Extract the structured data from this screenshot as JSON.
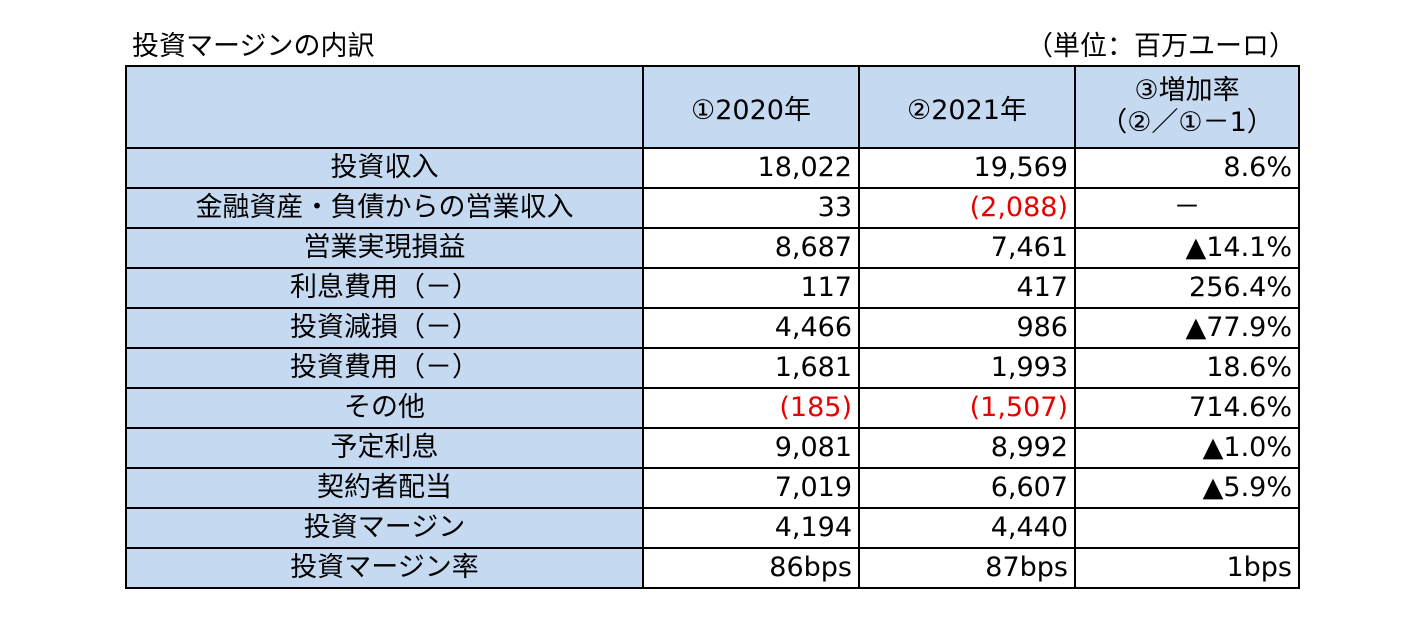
{
  "title": "投資マージンの内訳",
  "unit": "（単位：百万ユーロ）",
  "headers": {
    "col1": "①2020年",
    "col2": "②2021年",
    "col3_line1": "③増加率",
    "col3_line2": "（②／①－1）"
  },
  "rows": [
    {
      "label": "投資収入",
      "v2020": "18,022",
      "v2021": "19,569",
      "rate": "8.6%"
    },
    {
      "label": "金融資産・負債からの営業収入",
      "v2020": "33",
      "v2021": "(2,088)",
      "rate": "－"
    },
    {
      "label": "営業実現損益",
      "v2020": "8,687",
      "v2021": "7,461",
      "rate": "▲14.1%"
    },
    {
      "label": "利息費用（－）",
      "v2020": "117",
      "v2021": "417",
      "rate": "256.4%"
    },
    {
      "label": "投資減損（－）",
      "v2020": "4,466",
      "v2021": "986",
      "rate": "▲77.9%"
    },
    {
      "label": "投資費用（－）",
      "v2020": "1,681",
      "v2021": "1,993",
      "rate": "18.6%"
    },
    {
      "label": "その他",
      "v2020": "(185)",
      "v2021": "(1,507)",
      "rate": "714.6%"
    },
    {
      "label": "予定利息",
      "v2020": "9,081",
      "v2021": "8,992",
      "rate": "▲1.0%"
    },
    {
      "label": "契約者配当",
      "v2020": "7,019",
      "v2021": "6,607",
      "rate": "▲5.9%"
    },
    {
      "label": "投資マージン",
      "v2020": "4,194",
      "v2021": "4,440",
      "rate": ""
    },
    {
      "label": "投資マージン率",
      "v2020": "86bps",
      "v2021": "87bps",
      "rate": "1bps"
    }
  ],
  "colors": {
    "header_fill": "#c5d9f1",
    "negative_text": "#e60000"
  }
}
